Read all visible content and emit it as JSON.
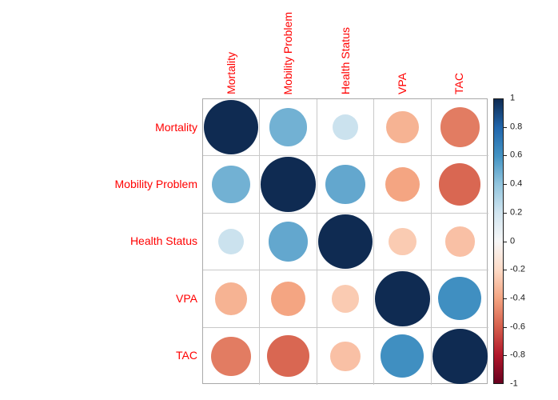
{
  "chart_data": {
    "type": "heatmap",
    "subtype": "correlation-matrix-circles",
    "title": "",
    "variables": [
      "Mortality",
      "Mobility Problem",
      "Health Status",
      "VPA",
      "TAC"
    ],
    "matrix": [
      [
        1.0,
        0.48,
        0.22,
        -0.35,
        -0.52
      ],
      [
        0.48,
        1.0,
        0.52,
        -0.4,
        -0.58
      ],
      [
        0.22,
        0.52,
        1.0,
        -0.26,
        -0.3
      ],
      [
        -0.35,
        -0.4,
        -0.26,
        1.0,
        0.62
      ],
      [
        -0.52,
        -0.58,
        -0.3,
        0.62,
        1.0
      ]
    ],
    "colorbar": {
      "position": "right",
      "min": -1,
      "max": 1,
      "tick_labels": [
        "1",
        "0.8",
        "0.6",
        "0.4",
        "0.2",
        "0",
        "-0.2",
        "-0.4",
        "-0.6",
        "-0.8",
        "-1"
      ],
      "tick_values": [
        1,
        0.8,
        0.6,
        0.4,
        0.2,
        0,
        -0.2,
        -0.4,
        -0.6,
        -0.8,
        -1
      ]
    },
    "palette_stops": [
      {
        "v": 1.0,
        "c": "#0f2b52"
      },
      {
        "v": 0.8,
        "c": "#2166ac"
      },
      {
        "v": 0.6,
        "c": "#4393c3"
      },
      {
        "v": 0.4,
        "c": "#92c5de"
      },
      {
        "v": 0.2,
        "c": "#d1e5f0"
      },
      {
        "v": 0.0,
        "c": "#f7f7f7"
      },
      {
        "v": -0.2,
        "c": "#fddbc7"
      },
      {
        "v": -0.4,
        "c": "#f4a582"
      },
      {
        "v": -0.6,
        "c": "#d6604d"
      },
      {
        "v": -0.8,
        "c": "#b2182b"
      },
      {
        "v": -1.0,
        "c": "#67001f"
      }
    ],
    "label_color": "#ff0000",
    "grid_on": true,
    "legend_position": "right"
  }
}
